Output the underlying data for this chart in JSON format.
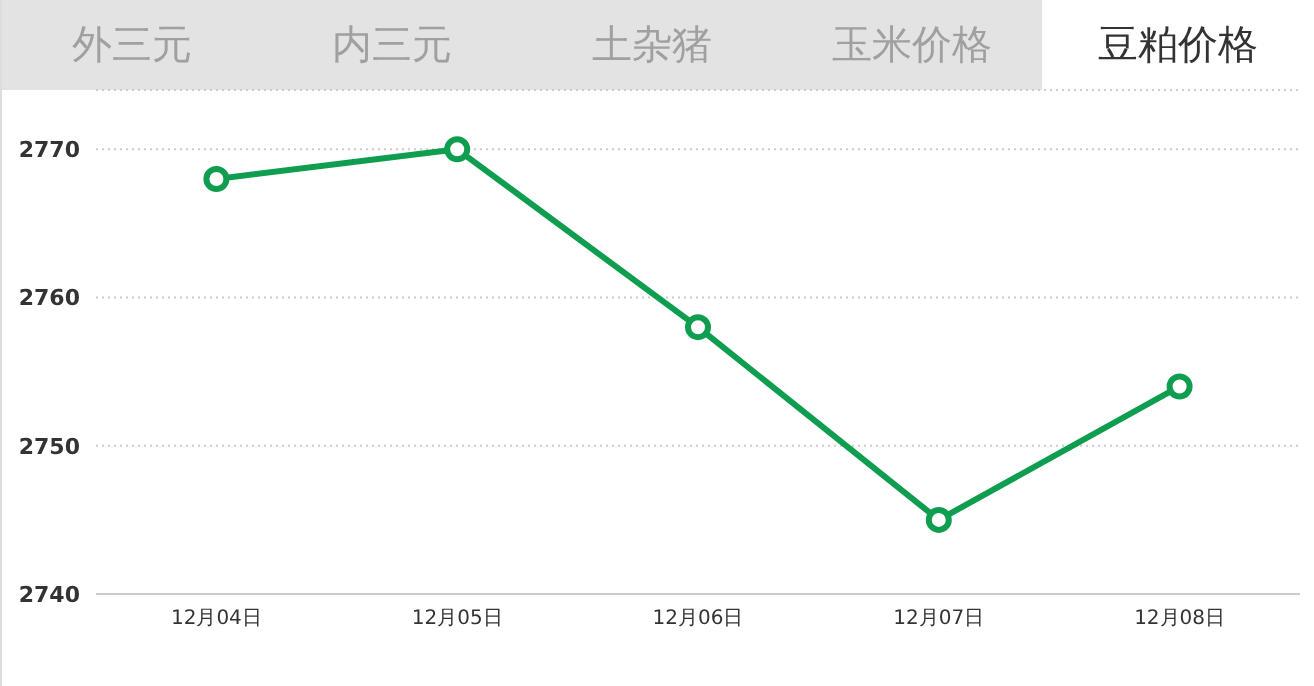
{
  "chart_data": {
    "type": "line",
    "title": "豆粕价格",
    "annotations": [
      "外三元",
      "内三元",
      "土杂猪",
      "玉米价格"
    ],
    "categories": [
      "12月04日",
      "12月05日",
      "12月06日",
      "12月07日",
      "12月08日"
    ],
    "series": [
      {
        "color": "#0f9d50",
        "values": [
          2768,
          2770,
          2758,
          2745,
          2754
        ]
      }
    ],
    "ylim": [
      2740,
      2774
    ],
    "yticks": [
      2740,
      2750,
      2760,
      2770
    ],
    "grid": "y",
    "marker": "circle",
    "line_style": "solid",
    "legend": false
  }
}
